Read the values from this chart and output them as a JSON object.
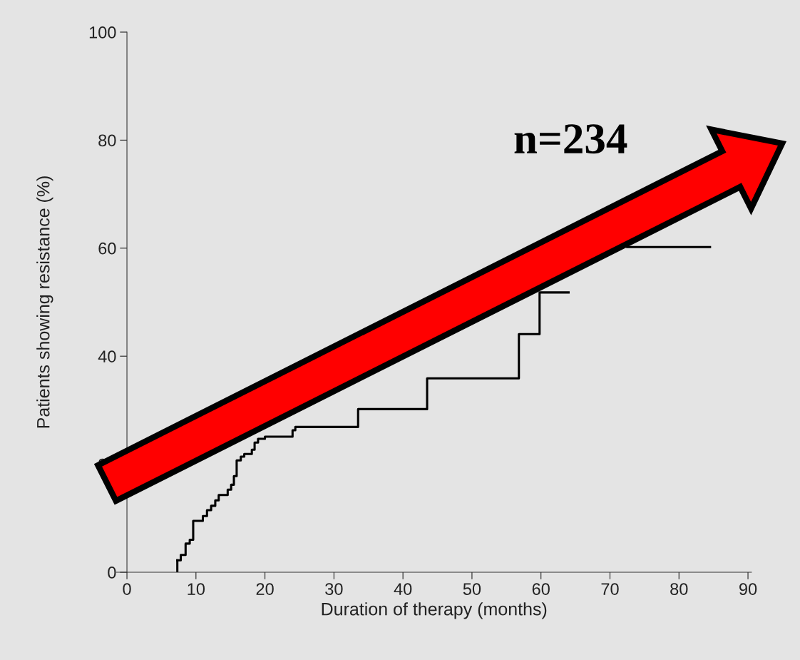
{
  "chart_data": {
    "type": "step",
    "xlabel": "Duration of therapy (months)",
    "ylabel": "Patients showing resistance (%)",
    "annotations": [
      "n=234"
    ],
    "x": [
      7.3,
      7.8,
      8.5,
      9.1,
      9.6,
      11.0,
      11.6,
      12.2,
      12.8,
      13.3,
      14.6,
      15.1,
      15.5,
      15.9,
      16.5,
      17.0,
      18.1,
      18.5,
      19.0,
      20.0,
      24.0,
      24.4,
      33.5,
      43.5,
      56.8,
      59.8,
      64.0,
      72.5,
      84.5
    ],
    "values": [
      2.2,
      3.2,
      5.3,
      6.0,
      9.5,
      10.4,
      11.5,
      12.3,
      13.3,
      14.3,
      15.3,
      16.2,
      17.8,
      20.7,
      21.4,
      21.9,
      22.7,
      24.0,
      24.7,
      25.1,
      26.3,
      26.9,
      30.2,
      35.9,
      44.1,
      51.8,
      null,
      60.2,
      60.2
    ],
    "color": "#000000",
    "xlim": [
      -1.5,
      90.5
    ],
    "ylim": [
      0,
      100
    ],
    "xticks": [
      0,
      10,
      20,
      30,
      40,
      50,
      60,
      70,
      80,
      90
    ],
    "yticks": [
      0,
      20,
      40,
      60,
      80,
      100
    ],
    "grid": false,
    "legend": false,
    "marker": "none",
    "line_style": "solid"
  }
}
